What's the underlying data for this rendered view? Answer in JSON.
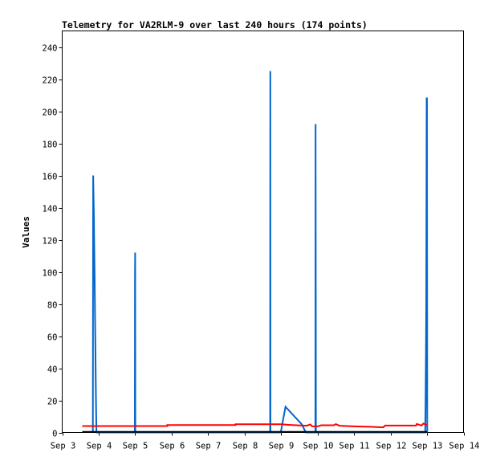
{
  "chart_data": {
    "type": "line",
    "title": "Telemetry for VA2RLM-9 over last 240 hours (174 points)",
    "xlabel": "",
    "ylabel": "Values",
    "x_tick_labels": [
      "Sep 3",
      "Sep 4",
      "Sep 5",
      "Sep 6",
      "Sep 7",
      "Sep 8",
      "Sep 9",
      "Sep 10",
      "Sep 11",
      "Sep 12",
      "Sep 13",
      "Sep 14"
    ],
    "xlim": [
      3,
      14
    ],
    "ylim": [
      0,
      250
    ],
    "y_ticks": [
      0,
      20,
      40,
      60,
      80,
      100,
      120,
      140,
      160,
      180,
      200,
      220,
      240
    ],
    "grid": false,
    "legend": "none",
    "series": [
      {
        "color": "#0066cc",
        "points": [
          [
            3.84,
            0
          ],
          [
            3.85,
            160
          ],
          [
            3.86,
            145
          ],
          [
            3.87,
            134
          ],
          [
            3.88,
            113
          ],
          [
            3.89,
            93
          ],
          [
            3.9,
            73
          ],
          [
            3.91,
            52
          ],
          [
            3.92,
            31
          ],
          [
            3.93,
            12
          ],
          [
            3.94,
            0
          ],
          [
            4.99,
            0
          ],
          [
            4.995,
            97
          ],
          [
            5.0,
            112
          ],
          [
            5.005,
            0
          ],
          [
            8.7,
            0
          ],
          [
            8.705,
            225
          ],
          [
            8.71,
            0
          ],
          [
            8.99,
            0
          ],
          [
            9.12,
            16
          ],
          [
            9.57,
            5
          ],
          [
            9.68,
            0
          ],
          [
            9.94,
            0
          ],
          [
            9.945,
            192
          ],
          [
            9.95,
            97
          ],
          [
            9.955,
            0
          ],
          [
            12.95,
            0
          ],
          [
            12.96,
            16
          ],
          [
            12.97,
            48
          ],
          [
            12.98,
            80
          ],
          [
            12.99,
            208
          ],
          [
            13.0,
            208
          ],
          [
            13.005,
            0
          ]
        ]
      },
      {
        "color": "#ff0000",
        "points": [
          [
            3.55,
            4
          ],
          [
            5.88,
            4
          ],
          [
            5.88,
            4.6
          ],
          [
            7.75,
            4.6
          ],
          [
            7.75,
            5.1
          ],
          [
            9.0,
            5.1
          ],
          [
            9.25,
            4.7
          ],
          [
            9.7,
            4.2
          ],
          [
            9.8,
            5
          ],
          [
            9.85,
            3.8
          ],
          [
            10.0,
            3.8
          ],
          [
            10.1,
            4.5
          ],
          [
            10.45,
            4.5
          ],
          [
            10.5,
            5.2
          ],
          [
            10.6,
            4.2
          ],
          [
            11.0,
            3.8
          ],
          [
            11.5,
            3.5
          ],
          [
            11.8,
            3.2
          ],
          [
            11.85,
            4.3
          ],
          [
            12.7,
            4.3
          ],
          [
            12.72,
            5.3
          ],
          [
            12.85,
            4.3
          ],
          [
            12.9,
            5.6
          ],
          [
            13.0,
            4.5
          ]
        ]
      },
      {
        "color": "#000000",
        "points": [
          [
            3.55,
            0.4
          ],
          [
            13.0,
            0.4
          ]
        ]
      }
    ]
  }
}
